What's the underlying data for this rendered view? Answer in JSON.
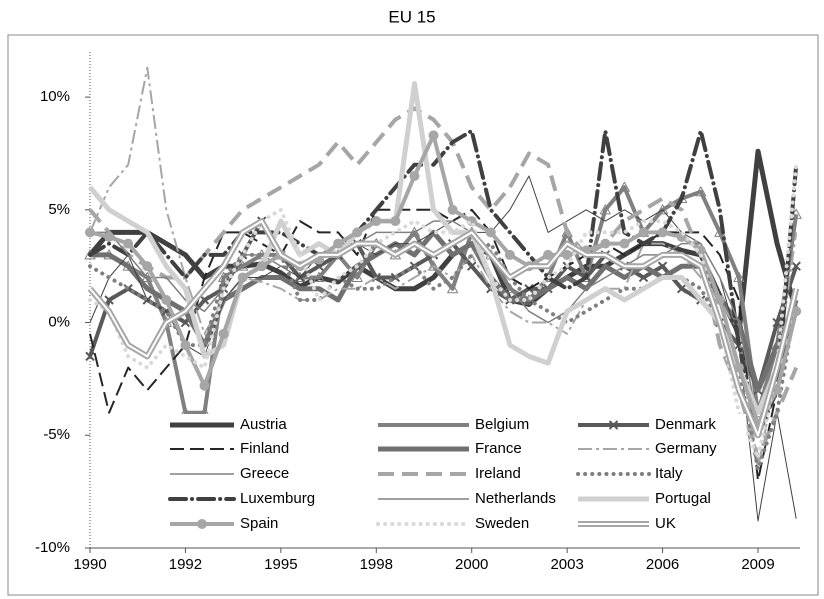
{
  "chart_data": {
    "type": "line",
    "title": "EU 15",
    "categories": [
      "1990",
      null,
      null,
      null,
      null,
      "1992",
      null,
      null,
      null,
      null,
      "1995",
      null,
      null,
      null,
      null,
      "1998",
      null,
      null,
      null,
      null,
      "2000",
      null,
      null,
      null,
      null,
      "2003",
      null,
      null,
      null,
      null,
      "2006",
      null,
      null,
      null,
      null,
      "2009",
      null,
      null
    ],
    "ylim": [
      -10,
      12
    ],
    "yticks": [
      {
        "value": -10,
        "label": "-10%"
      },
      {
        "value": -5,
        "label": "-5%"
      },
      {
        "value": 0,
        "label": "0%"
      },
      {
        "value": 5,
        "label": "5%"
      },
      {
        "value": 10,
        "label": "10%"
      }
    ],
    "series": [
      {
        "name": "Austria",
        "color": "#404040",
        "values": [
          3,
          4,
          4,
          4,
          3.5,
          3,
          2,
          2.5,
          2.5,
          2.6,
          2.2,
          1.6,
          2,
          1.8,
          2.5,
          2,
          1.5,
          1.5,
          2,
          3,
          3.5,
          3,
          1,
          0.8,
          1.5,
          2,
          2.5,
          2.5,
          3,
          3.5,
          3.5,
          3.2,
          3,
          1.2,
          -0.5,
          7.6,
          3.5,
          0.5
        ]
      },
      {
        "name": "Belgium",
        "color": "#808080",
        "values": [
          3,
          3,
          2.5,
          2,
          0,
          -4,
          -4,
          2,
          2.5,
          3,
          3,
          2,
          2,
          3,
          2,
          3.5,
          3,
          4,
          2.5,
          1.5,
          4,
          3,
          1.5,
          1,
          2,
          4,
          2,
          5,
          6,
          4,
          5,
          5.5,
          5.8,
          4,
          2,
          -4,
          -1,
          4.8
        ]
      },
      {
        "name": "Denmark",
        "color": "#595959",
        "values": [
          -1.5,
          1,
          1.5,
          1,
          0.5,
          0,
          1,
          1.5,
          3,
          4.5,
          3,
          2,
          2.5,
          3,
          3.5,
          2,
          2,
          2.5,
          3,
          3.5,
          2.5,
          1.5,
          1,
          1.5,
          1.5,
          2.5,
          2,
          3,
          2.5,
          2,
          2.5,
          1.5,
          1,
          0,
          -1,
          -3,
          0,
          2.5
        ]
      },
      {
        "name": "Finland",
        "color": "#262626",
        "values": [
          -0.5,
          -4,
          -2,
          -3,
          -2,
          -1,
          2,
          4,
          4,
          3.5,
          3,
          4.5,
          4,
          4,
          3,
          5,
          5,
          5,
          5,
          4.5,
          5,
          4,
          2,
          1.5,
          2,
          2.5,
          3,
          3.5,
          3,
          3.5,
          4,
          4,
          4,
          3,
          1,
          -7,
          -3,
          1.5
        ]
      },
      {
        "name": "France",
        "color": "#707070",
        "values": [
          3,
          3,
          2.5,
          1.5,
          1,
          0.5,
          -1,
          1,
          1.5,
          2,
          2,
          1.5,
          1.5,
          1,
          2.5,
          3,
          3.5,
          3,
          4,
          3,
          3.5,
          2,
          1,
          1,
          1.5,
          2,
          1.5,
          2.5,
          2,
          2.5,
          2,
          2.5,
          2.5,
          1,
          0,
          -3,
          -1,
          1
        ]
      },
      {
        "name": "Germany",
        "color": "#a6a6a6",
        "values": [
          4,
          6,
          7,
          11.3,
          5,
          2,
          -0.5,
          1,
          2,
          1.8,
          1.5,
          1,
          1,
          1.5,
          1.5,
          2,
          1.5,
          2,
          2.5,
          2,
          3,
          1.5,
          0.5,
          0,
          0,
          -0.5,
          1,
          1.5,
          1.5,
          3.5,
          3.5,
          3,
          2,
          1,
          -0.5,
          -6.5,
          -2,
          4
        ]
      },
      {
        "name": "Greece",
        "color": "#404040",
        "values": [
          0,
          2,
          3,
          1,
          0.5,
          -1,
          -1.5,
          1,
          2,
          2,
          2.5,
          2,
          3,
          3,
          3.5,
          3,
          3.5,
          3.5,
          4,
          4.5,
          4,
          4,
          5,
          6.5,
          4,
          4.5,
          5,
          4.5,
          5,
          4.5,
          5,
          4,
          3.5,
          2,
          -1,
          -8.8,
          -4,
          -8.7
        ]
      },
      {
        "name": "Ireland",
        "color": "#a6a6a6",
        "values": [
          5,
          4,
          3,
          2.5,
          2,
          2,
          3,
          4,
          5,
          5.5,
          6,
          6.5,
          7,
          8,
          7,
          8,
          9,
          9.5,
          9,
          8,
          6,
          5,
          6,
          7.5,
          7,
          4,
          3,
          3.5,
          4.5,
          5,
          5.5,
          5,
          3,
          -1,
          -3,
          -6,
          -4,
          -2
        ]
      },
      {
        "name": "Italy",
        "color": "#7f7f7f",
        "values": [
          2.5,
          2,
          1.5,
          1,
          0.5,
          -1,
          -1,
          2,
          3,
          3,
          3,
          1,
          1,
          2,
          1.5,
          1.5,
          2,
          2.5,
          1.5,
          2,
          3,
          3.5,
          2,
          1,
          0.5,
          0,
          0.5,
          1,
          1.5,
          1.5,
          2,
          2,
          1.5,
          0,
          -2,
          -6.5,
          -4,
          1
        ]
      },
      {
        "name": "Luxemburg",
        "color": "#404040",
        "values": [
          3,
          3.5,
          3,
          4,
          3,
          2,
          3,
          3,
          4,
          4,
          4,
          3.5,
          3,
          3,
          4,
          5,
          6,
          7,
          7,
          8,
          8.5,
          5,
          4,
          3,
          2,
          1.5,
          2,
          8.5,
          4,
          3.5,
          4,
          5.5,
          8.5,
          5,
          -1,
          -5,
          -3,
          7
        ]
      },
      {
        "name": "Netherlands",
        "color": "#808080",
        "values": [
          4,
          4,
          3,
          2,
          2,
          1,
          0.5,
          1.5,
          3,
          3,
          2.5,
          2.5,
          3,
          3.5,
          3.5,
          4,
          4,
          4,
          4.5,
          4.5,
          4,
          3,
          1.5,
          0.5,
          0,
          0.5,
          1.5,
          2,
          2.5,
          3,
          3,
          3.5,
          3.5,
          2,
          0,
          -4.5,
          -2,
          1
        ]
      },
      {
        "name": "Portugal",
        "color": "#d0d0d0",
        "values": [
          6,
          5,
          4.5,
          4,
          2.5,
          1.5,
          -1.5,
          -1,
          2,
          2.5,
          4.5,
          3,
          3.5,
          3,
          4,
          4.5,
          4.5,
          10.6,
          5,
          4,
          4,
          2,
          -1,
          -1.5,
          -1.8,
          0.5,
          1,
          1.5,
          1,
          1.5,
          2,
          2,
          1,
          0,
          -2,
          -4,
          -2,
          1.5
        ]
      },
      {
        "name": "Spain",
        "color": "#a6a6a6",
        "values": [
          4,
          3.8,
          3.5,
          2.5,
          1,
          -1,
          -2.8,
          -0.5,
          2,
          2.5,
          3,
          2.5,
          2.8,
          3.5,
          4,
          4.5,
          4.5,
          6.5,
          8.3,
          5,
          4.5,
          4,
          3,
          2.5,
          3,
          3,
          3.2,
          3.5,
          3.5,
          4,
          4,
          3.8,
          3.2,
          1,
          -2,
          -4.5,
          -3,
          0.5
        ]
      },
      {
        "name": "Sweden",
        "color": "#d9d9d9",
        "values": [
          1,
          0.5,
          -1.5,
          -2,
          -1,
          -1.5,
          -2,
          1.5,
          3,
          4.5,
          5,
          3,
          1,
          2,
          2.5,
          3.5,
          4,
          4.5,
          4,
          4,
          4.5,
          2,
          1,
          1,
          2,
          2.5,
          4,
          4,
          4,
          4.5,
          4.5,
          4,
          3,
          0,
          -4,
          -6,
          -2,
          7
        ]
      },
      {
        "name": "UK",
        "color": "#a6a6a6",
        "values": [
          1.5,
          0.5,
          -1,
          -1.5,
          0,
          0.5,
          1.5,
          2.5,
          4,
          4.5,
          3,
          2.5,
          3,
          3,
          3.5,
          3.5,
          3,
          3.5,
          3,
          3.5,
          4,
          3,
          2,
          2.5,
          2.5,
          3.5,
          3,
          3,
          2.5,
          2.5,
          3,
          3,
          2.5,
          0,
          -3,
          -5,
          -2,
          1.5
        ]
      }
    ]
  }
}
